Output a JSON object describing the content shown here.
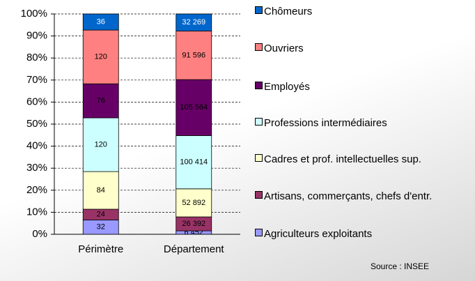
{
  "chart_data": {
    "type": "stacked_bar_100",
    "categories": [
      "Périmètre",
      "Département"
    ],
    "series": [
      {
        "name": "Agriculteurs exploitants",
        "color": "#9999ff",
        "values": [
          32,
          6452
        ],
        "value_labels": [
          "32",
          "6 452"
        ]
      },
      {
        "name": "Artisans, commerçants, chefs d'entr.",
        "color": "#993366",
        "values": [
          24,
          26392
        ],
        "value_labels": [
          "24",
          "26 392"
        ]
      },
      {
        "name": "Cadres et prof. intellectuelles sup.",
        "color": "#ffffcc",
        "values": [
          84,
          52892
        ],
        "value_labels": [
          "84",
          "52 892"
        ]
      },
      {
        "name": "Professions intermédiaires",
        "color": "#ccffff",
        "values": [
          120,
          100414
        ],
        "value_labels": [
          "120",
          "100 414"
        ]
      },
      {
        "name": "Employés",
        "color": "#660066",
        "values": [
          76,
          105564
        ],
        "value_labels": [
          "76",
          "105 564"
        ]
      },
      {
        "name": "Ouvriers",
        "color": "#ff8080",
        "values": [
          120,
          91596
        ],
        "value_labels": [
          "120",
          "91 596"
        ]
      },
      {
        "name": "Chômeurs",
        "color": "#0066cc",
        "values": [
          36,
          32269
        ],
        "value_labels": [
          "36",
          "32 269"
        ]
      }
    ],
    "ylim": [
      0,
      100
    ],
    "yticks": [
      {
        "value": 0,
        "label": "0%"
      },
      {
        "value": 10,
        "label": "10%"
      },
      {
        "value": 20,
        "label": "20%"
      },
      {
        "value": 30,
        "label": "30%"
      },
      {
        "value": 40,
        "label": "40%"
      },
      {
        "value": 50,
        "label": "50%"
      },
      {
        "value": 60,
        "label": "60%"
      },
      {
        "value": 70,
        "label": "70%"
      },
      {
        "value": 80,
        "label": "80%"
      },
      {
        "value": 90,
        "label": "90%"
      },
      {
        "value": 100,
        "label": "100%"
      }
    ],
    "grid": true,
    "source": "Source :  INSEE"
  }
}
